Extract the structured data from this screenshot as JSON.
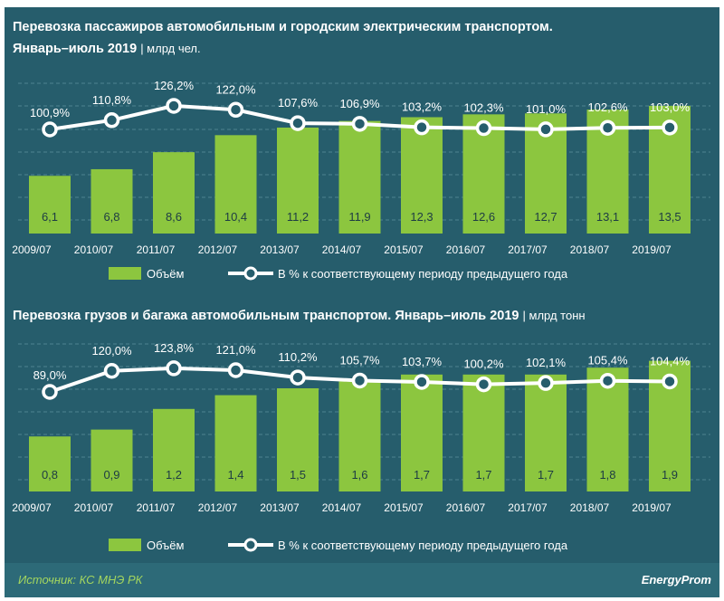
{
  "charts": [
    {
      "title": "Перевозка пассажиров автомобильным  и городским электрическим  транспортом.",
      "title2": "Январь–июль  2019",
      "unit": "| млрд чел.",
      "chart_data": {
        "type": "bar+line",
        "categories": [
          "2009/07",
          "2010/07",
          "2011/07",
          "2012/07",
          "2013/07",
          "2014/07",
          "2015/07",
          "2016/07",
          "2017/07",
          "2018/07",
          "2019/07"
        ],
        "series": [
          {
            "name": "Объём",
            "type": "bar",
            "values": [
              6.1,
              6.8,
              8.6,
              10.4,
              11.2,
              11.9,
              12.3,
              12.6,
              12.7,
              13.1,
              13.5
            ],
            "labels": [
              "6,1",
              "6,8",
              "8,6",
              "10,4",
              "11,2",
              "11,9",
              "12,3",
              "12,6",
              "12,7",
              "13,1",
              "13,5"
            ]
          },
          {
            "name": "В % к соответствующему периоду предыдущего года",
            "type": "line",
            "values": [
              100.9,
              110.8,
              126.2,
              122.0,
              107.6,
              106.9,
              103.2,
              102.3,
              101.0,
              102.6,
              103.0
            ],
            "labels": [
              "100,9%",
              "110,8%",
              "126,2%",
              "122,0%",
              "107,6%",
              "106,9%",
              "103,2%",
              "102,3%",
              "101,0%",
              "102,6%",
              "103,0%"
            ]
          }
        ]
      }
    },
    {
      "title": "Перевозка грузов и багажа автомобильным  транспортом. Январь–июль  2019",
      "unit": "| млрд тонн",
      "chart_data": {
        "type": "bar+line",
        "categories": [
          "2009/07",
          "2010/07",
          "2011/07",
          "2012/07",
          "2013/07",
          "2014/07",
          "2015/07",
          "2016/07",
          "2017/07",
          "2018/07",
          "2019/07"
        ],
        "series": [
          {
            "name": "Объём",
            "type": "bar",
            "values": [
              0.8,
              0.9,
              1.2,
              1.4,
              1.5,
              1.6,
              1.7,
              1.7,
              1.7,
              1.8,
              1.9
            ],
            "labels": [
              "0,8",
              "0,9",
              "1,2",
              "1,4",
              "1,5",
              "1,6",
              "1,7",
              "1,7",
              "1,7",
              "1,8",
              "1,9"
            ]
          },
          {
            "name": "В % к соответствующему периоду предыдущего года",
            "type": "line",
            "values": [
              89.0,
              120.0,
              123.8,
              121.0,
              110.2,
              105.7,
              103.7,
              100.2,
              102.1,
              105.4,
              104.4
            ],
            "labels": [
              "89,0%",
              "120,0%",
              "123,8%",
              "121,0%",
              "110,2%",
              "105,7%",
              "103,7%",
              "100,2%",
              "102,1%",
              "105,4%",
              "104,4%"
            ]
          }
        ]
      }
    }
  ],
  "colors": {
    "background": "#265d6c",
    "bar": "#8cc63f",
    "line": "#ffffff",
    "marker_fill": "#265d6c",
    "source": "#a4d65e"
  },
  "source": "Источник: КС МНЭ РК",
  "logo": "EnergyProm"
}
